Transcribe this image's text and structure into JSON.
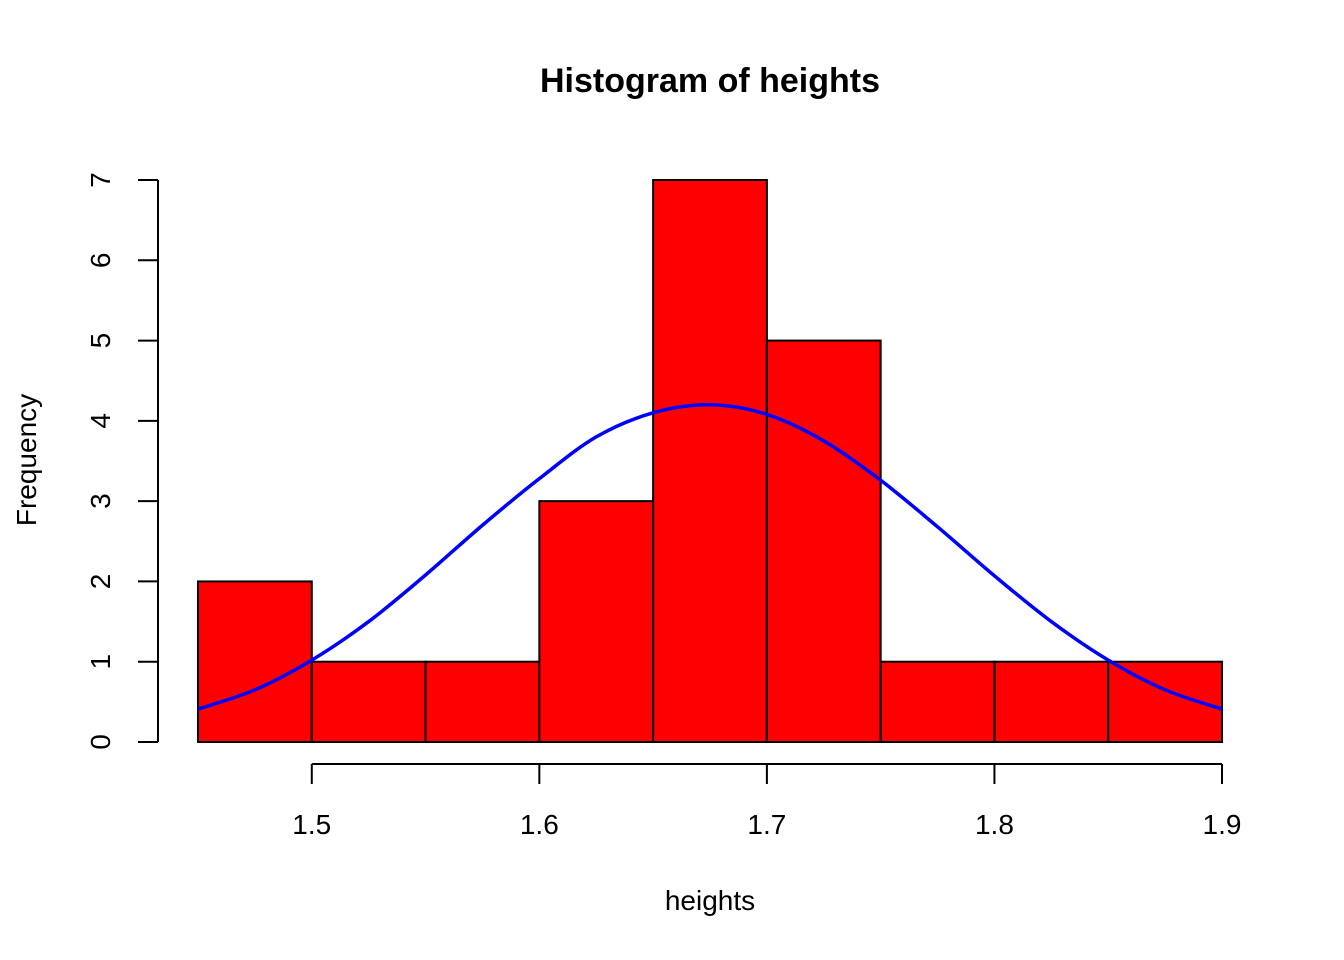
{
  "chart_data": {
    "type": "bar",
    "title": "Histogram of heights",
    "xlabel": "heights",
    "ylabel": "Frequency",
    "bins": [
      {
        "start": 1.45,
        "end": 1.5,
        "count": 2
      },
      {
        "start": 1.5,
        "end": 1.55,
        "count": 1
      },
      {
        "start": 1.55,
        "end": 1.6,
        "count": 1
      },
      {
        "start": 1.6,
        "end": 1.65,
        "count": 3
      },
      {
        "start": 1.65,
        "end": 1.7,
        "count": 7
      },
      {
        "start": 1.7,
        "end": 1.75,
        "count": 5
      },
      {
        "start": 1.75,
        "end": 1.8,
        "count": 1
      },
      {
        "start": 1.8,
        "end": 1.85,
        "count": 1
      },
      {
        "start": 1.85,
        "end": 1.9,
        "count": 1
      }
    ],
    "x_ticks": [
      "1.5",
      "1.6",
      "1.7",
      "1.8",
      "1.9"
    ],
    "y_ticks": [
      "0",
      "1",
      "2",
      "3",
      "4",
      "5",
      "6",
      "7"
    ],
    "xlim": [
      1.45,
      1.9
    ],
    "ylim": [
      0,
      7
    ],
    "grid": false,
    "bar_color": "#ff0000",
    "bar_border_color": "#000000",
    "curve": {
      "type": "normal-density-overlay",
      "color": "#0000ff",
      "x": [
        1.45,
        1.475,
        1.5,
        1.525,
        1.55,
        1.575,
        1.6,
        1.625,
        1.65,
        1.675,
        1.7,
        1.725,
        1.75,
        1.775,
        1.8,
        1.825,
        1.85,
        1.875,
        1.9
      ],
      "y": [
        0.41,
        0.65,
        1.02,
        1.5,
        2.08,
        2.7,
        3.28,
        3.8,
        4.1,
        4.2,
        4.08,
        3.75,
        3.26,
        2.68,
        2.07,
        1.5,
        1.02,
        0.65,
        0.41
      ]
    }
  }
}
